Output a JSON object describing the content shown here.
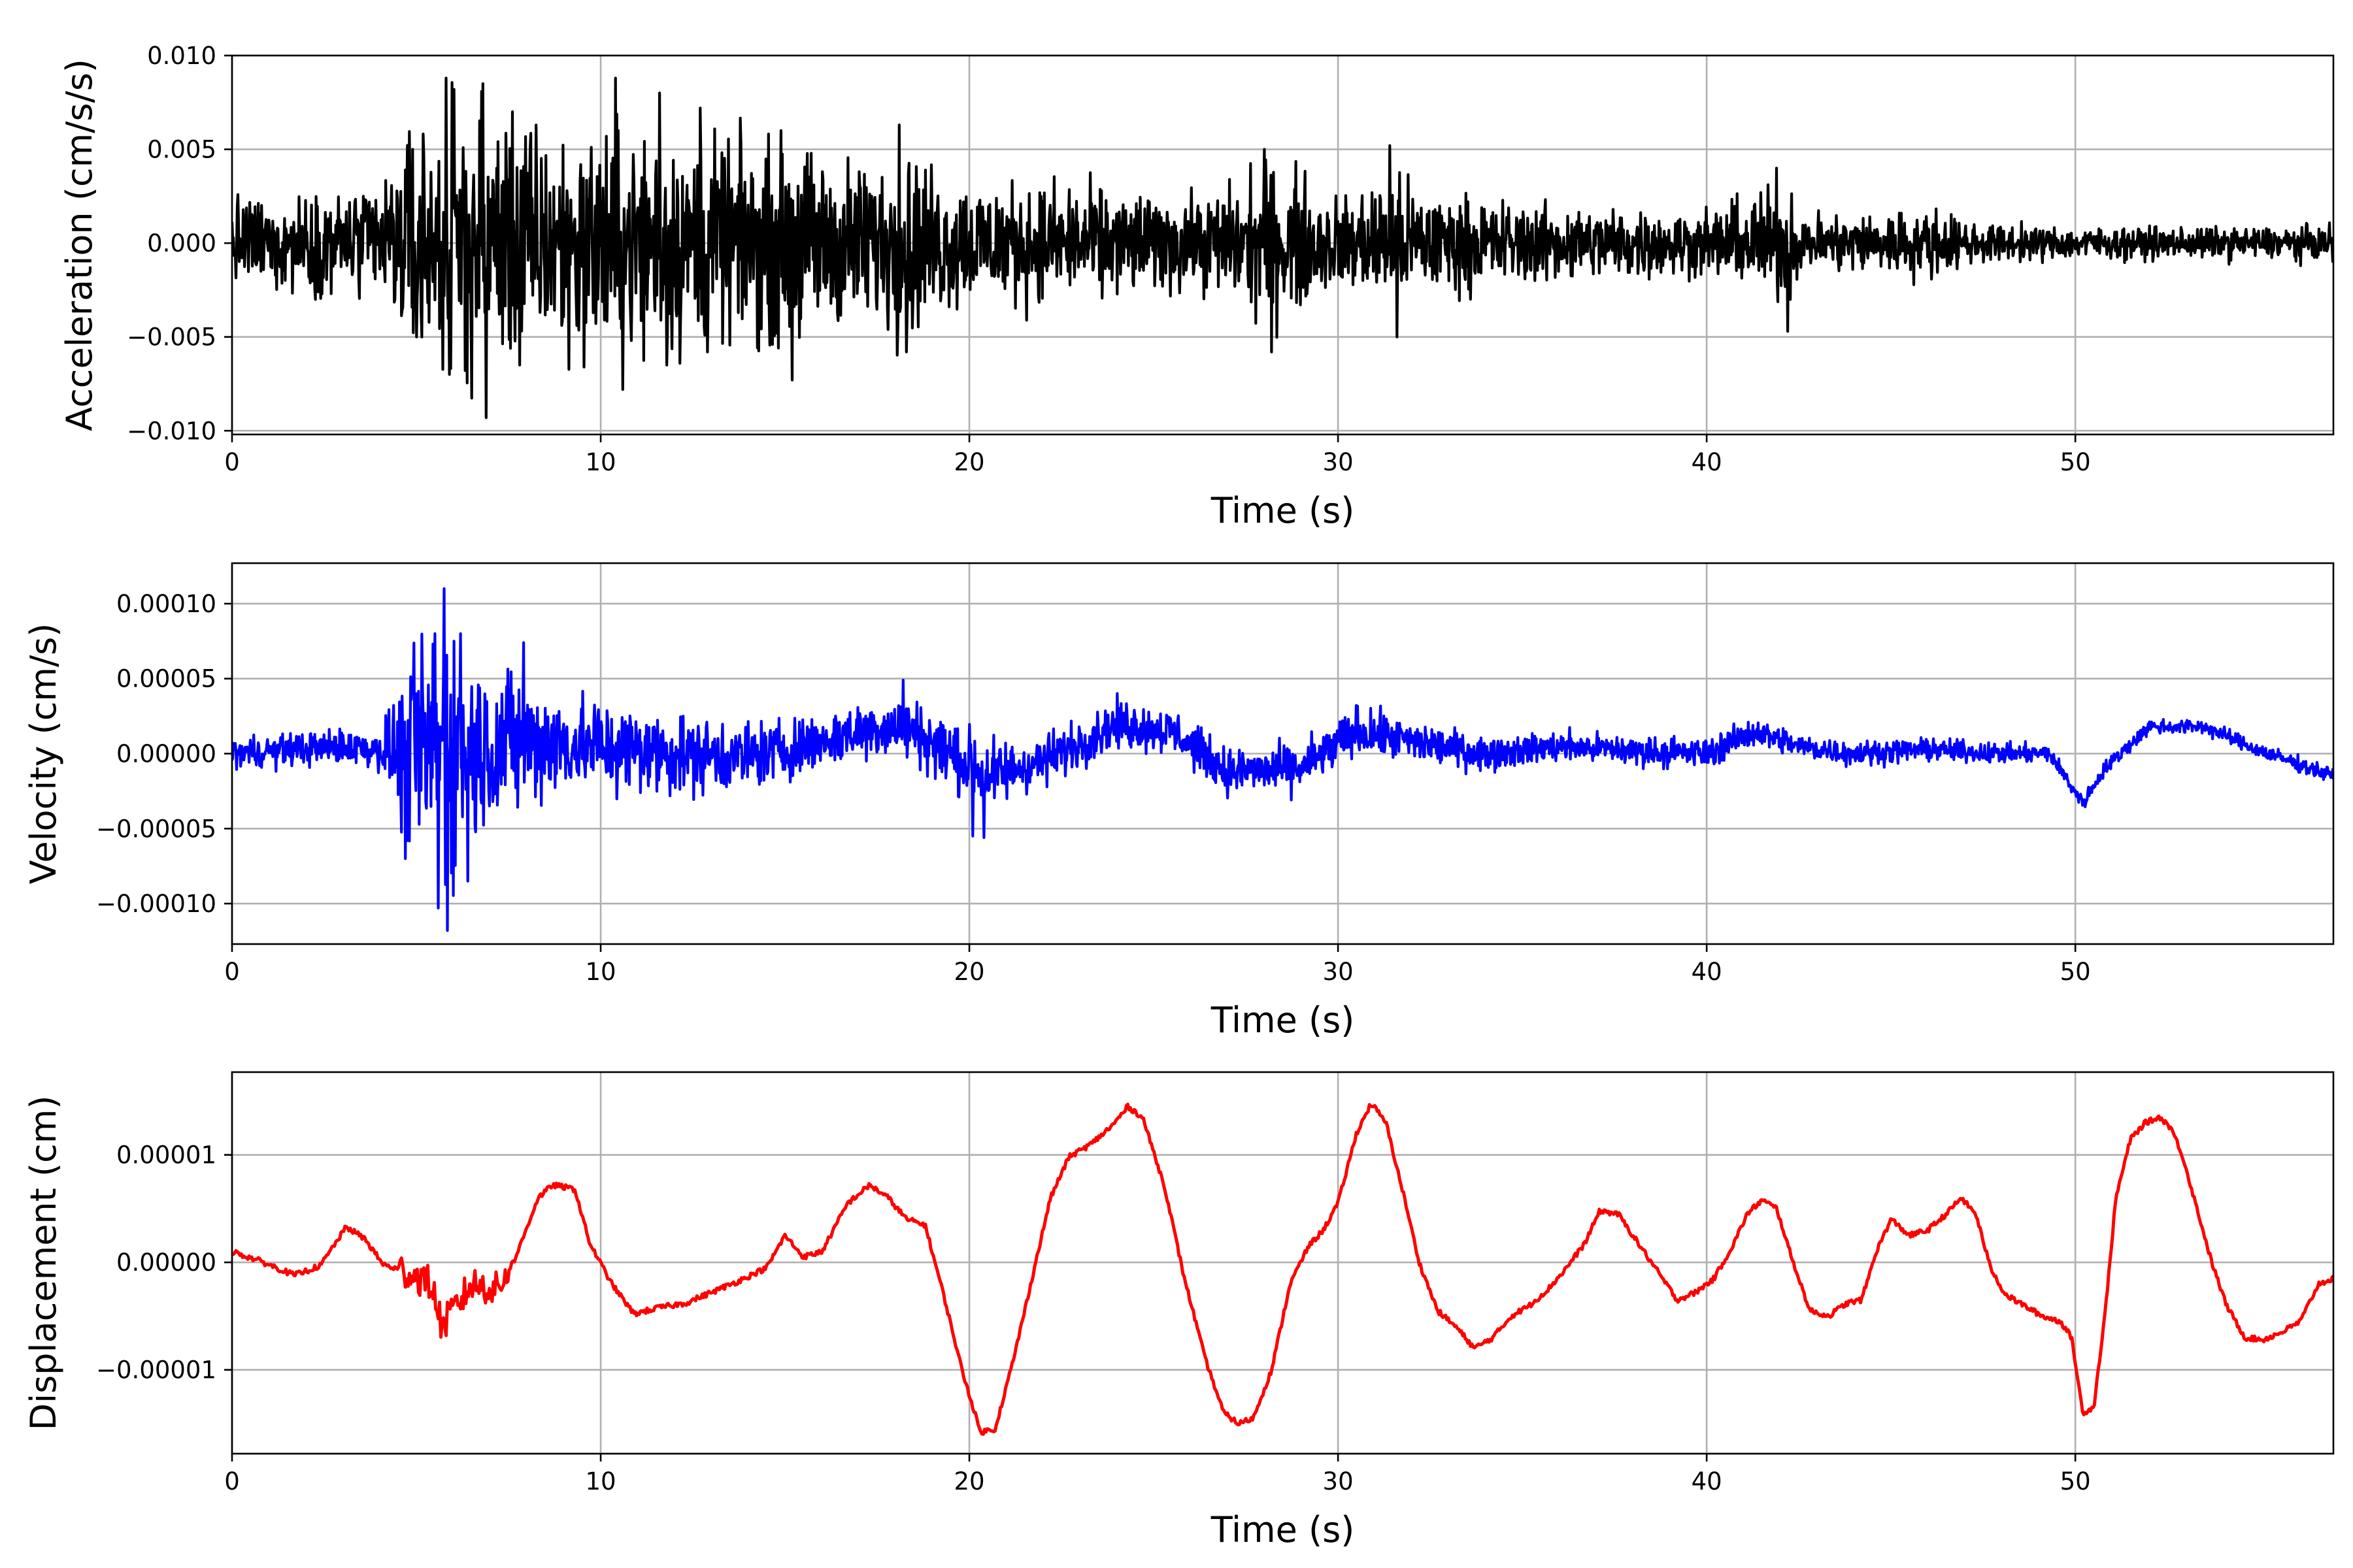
{
  "figure": {
    "layout": "three stacked panels sharing the time axis"
  },
  "chart_data": [
    {
      "type": "line",
      "panel": "acceleration",
      "title": "",
      "xlabel": "Time (s)",
      "ylabel": "Acceleration (cm/s/s)",
      "xlim": [
        0,
        57
      ],
      "ylim": [
        -0.0102,
        0.01
      ],
      "xticks": [
        0,
        10,
        20,
        30,
        40,
        50
      ],
      "xtick_labels": [
        "0",
        "10",
        "20",
        "30",
        "40",
        "50"
      ],
      "yticks": [
        0.01,
        0.005,
        0.0,
        -0.005,
        -0.01
      ],
      "ytick_labels": [
        "0.010",
        "0.005",
        "0.000",
        "−0.005",
        "−0.010"
      ],
      "grid": true,
      "legend": "none",
      "color": "#000000",
      "signal": "noise",
      "envelope": {
        "t": [
          0,
          2,
          4,
          4.8,
          5.5,
          6,
          6.8,
          7.5,
          9,
          10.5,
          12,
          13.5,
          15.2,
          17,
          18.2,
          19.5,
          21,
          23,
          25,
          26.5,
          28,
          28.8,
          30,
          31.5,
          32.5,
          35,
          38,
          40,
          41.5,
          42.3,
          42.5,
          44,
          46,
          47.5,
          50,
          53,
          55,
          57
        ],
        "amp": [
          0.0028,
          0.003,
          0.0038,
          0.0068,
          0.0078,
          0.0085,
          0.009,
          0.0075,
          0.0072,
          0.0072,
          0.007,
          0.006,
          0.0062,
          0.005,
          0.0058,
          0.0042,
          0.0038,
          0.0036,
          0.003,
          0.003,
          0.0048,
          0.0045,
          0.0028,
          0.0042,
          0.0032,
          0.0025,
          0.0022,
          0.002,
          0.0032,
          0.0035,
          0.0018,
          0.0019,
          0.0022,
          0.0012,
          0.001,
          0.001,
          0.001,
          0.0011
        ]
      },
      "peaks": [
        {
          "t": 4.9,
          "value": 0.005
        },
        {
          "t": 5.0,
          "value": -0.005
        },
        {
          "t": 5.8,
          "value": 0.0088
        },
        {
          "t": 5.9,
          "value": -0.007
        },
        {
          "t": 6.8,
          "value": 0.0085
        },
        {
          "t": 6.9,
          "value": -0.0093
        },
        {
          "t": 7.6,
          "value": 0.007
        },
        {
          "t": 7.8,
          "value": -0.0065
        },
        {
          "t": 10.4,
          "value": 0.0088
        },
        {
          "t": 10.6,
          "value": -0.0078
        },
        {
          "t": 11.6,
          "value": 0.008
        },
        {
          "t": 11.8,
          "value": -0.0065
        },
        {
          "t": 12.7,
          "value": 0.0072
        },
        {
          "t": 12.9,
          "value": -0.0058
        },
        {
          "t": 14.9,
          "value": 0.006
        },
        {
          "t": 15.2,
          "value": -0.0073
        },
        {
          "t": 18.1,
          "value": 0.0063
        },
        {
          "t": 18.3,
          "value": -0.0058
        },
        {
          "t": 28.0,
          "value": 0.005
        },
        {
          "t": 28.2,
          "value": -0.0058
        },
        {
          "t": 31.4,
          "value": 0.0052
        },
        {
          "t": 31.6,
          "value": -0.005
        },
        {
          "t": 41.9,
          "value": 0.004
        },
        {
          "t": 42.2,
          "value": -0.0047
        }
      ],
      "points": 3200
    },
    {
      "type": "line",
      "panel": "velocity",
      "title": "",
      "xlabel": "Time (s)",
      "ylabel": "Velocity (cm/s)",
      "xlim": [
        0,
        57
      ],
      "ylim": [
        -0.000127,
        0.000127
      ],
      "xticks": [
        0,
        10,
        20,
        30,
        40,
        50
      ],
      "xtick_labels": [
        "0",
        "10",
        "20",
        "30",
        "40",
        "50"
      ],
      "yticks": [
        0.0001,
        5e-05,
        0.0,
        -5e-05,
        -0.0001
      ],
      "ytick_labels": [
        "0.00010",
        "0.00005",
        "0.00000",
        "−0.00005",
        "−0.00010"
      ],
      "grid": true,
      "legend": "none",
      "color": "#0000ff",
      "signal": "noise-plus-baseline",
      "baseline": {
        "t": [
          0,
          3,
          5,
          8,
          10,
          12,
          14,
          16,
          17.5,
          18.5,
          19.5,
          20.5,
          22,
          24,
          25.5,
          27,
          29,
          30.5,
          32,
          34,
          36,
          38,
          40,
          41.3,
          42.5,
          44,
          46,
          48,
          49.3,
          50.2,
          50.8,
          52,
          53.5,
          55,
          57
        ],
        "value": [
          0.0,
          5e-06,
          0.0,
          8e-06,
          5e-06,
          0.0,
          -2e-06,
          8e-06,
          1.8e-05,
          1.5e-05,
          0.0,
          -1.5e-05,
          -5e-06,
          2e-05,
          1.5e-05,
          -1.2e-05,
          -1e-05,
          1.5e-05,
          8e-06,
          0.0,
          5e-06,
          2e-06,
          0.0,
          1.5e-05,
          5e-06,
          0.0,
          3e-06,
          0.0,
          0.0,
          -3.3e-05,
          -1e-05,
          1.8e-05,
          1.8e-05,
          2e-06,
          -1.5e-05
        ]
      },
      "envelope": {
        "t": [
          0,
          4,
          4.6,
          5.0,
          5.5,
          5.8,
          6.2,
          7,
          8,
          9,
          12,
          16,
          18.5,
          20,
          22,
          25,
          28,
          30,
          35,
          40,
          43,
          48,
          50,
          52,
          57
        ],
        "amp": [
          1.2e-05,
          1.5e-05,
          6e-05,
          8.5e-05,
          0.0001,
          0.000112,
          8e-05,
          6.5e-05,
          5e-05,
          4e-05,
          3.2e-05,
          2.2e-05,
          2.5e-05,
          3e-05,
          2e-05,
          1.8e-05,
          1.8e-05,
          2e-05,
          1.2e-05,
          1.2e-05,
          1e-05,
          8e-06,
          6e-06,
          6e-06,
          6e-06
        ]
      },
      "peaks": [
        {
          "t": 4.7,
          "value": -7e-05
        },
        {
          "t": 5.0,
          "value": 4e-05
        },
        {
          "t": 5.5,
          "value": 8e-05
        },
        {
          "t": 5.6,
          "value": -0.000103
        },
        {
          "t": 5.75,
          "value": 0.00011
        },
        {
          "t": 5.85,
          "value": -0.000118
        },
        {
          "t": 6.2,
          "value": 8e-05
        },
        {
          "t": 6.4,
          "value": -8.5e-05
        },
        {
          "t": 7.9,
          "value": 7.4e-05
        },
        {
          "t": 20.1,
          "value": -5.5e-05
        },
        {
          "t": 20.4,
          "value": -5.6e-05
        },
        {
          "t": 18.2,
          "value": 4.9e-05
        }
      ],
      "points": 3200
    },
    {
      "type": "line",
      "panel": "displacement",
      "title": "",
      "xlabel": "Time (s)",
      "ylabel": "Displacement (cm)",
      "xlim": [
        0,
        57
      ],
      "ylim": [
        -1.78e-05,
        1.77e-05
      ],
      "xticks": [
        0,
        10,
        20,
        30,
        40,
        50
      ],
      "xtick_labels": [
        "0",
        "10",
        "20",
        "30",
        "40",
        "50"
      ],
      "yticks": [
        1e-05,
        0.0,
        -1e-05
      ],
      "ytick_labels": [
        "0.00001",
        "0.00000",
        "−0.00001"
      ],
      "grid": true,
      "legend": "none",
      "color": "#ff0000",
      "signal": "smooth-plus-noise",
      "x": [
        0,
        0.7,
        1.7,
        2.4,
        3.1,
        3.6,
        4.1,
        4.8,
        5.4,
        5.7,
        6.1,
        6.5,
        7.2,
        7.7,
        8.3,
        8.7,
        9.3,
        9.7,
        10.3,
        10.9,
        11.6,
        12.3,
        13.0,
        13.7,
        14.5,
        15.0,
        15.5,
        16.0,
        16.7,
        17.3,
        17.8,
        18.3,
        18.8,
        19.3,
        19.8,
        20.3,
        20.7,
        21.2,
        21.7,
        22.2,
        22.7,
        23.3,
        23.9,
        24.3,
        24.7,
        25.3,
        25.8,
        26.4,
        26.9,
        27.3,
        27.7,
        28.2,
        28.7,
        29.2,
        29.6,
        30.0,
        30.5,
        30.9,
        31.3,
        31.8,
        32.2,
        32.7,
        33.2,
        33.7,
        34.2,
        34.7,
        35.2,
        35.7,
        36.2,
        36.7,
        37.1,
        37.6,
        38.1,
        38.7,
        39.2,
        39.7,
        40.2,
        40.7,
        41.1,
        41.5,
        41.9,
        42.3,
        42.8,
        43.3,
        43.8,
        44.2,
        44.6,
        45.0,
        45.5,
        46.0,
        46.5,
        46.9,
        47.3,
        47.7,
        48.1,
        48.6,
        49.1,
        49.6,
        49.9,
        50.2,
        50.5,
        50.8,
        51.1,
        51.5,
        51.9,
        52.3,
        52.6,
        52.9,
        53.3,
        53.7,
        54.1,
        54.6,
        55.1,
        55.6,
        56.1,
        56.6,
        57.0
      ],
      "y": [
        1e-06,
        2e-07,
        -1.2e-06,
        -3e-07,
        3.3e-06,
        2.2e-06,
        -2e-07,
        -1e-06,
        -2e-06,
        -6e-06,
        -4e-06,
        -2e-06,
        -2.5e-06,
        5e-07,
        6e-06,
        7.2e-06,
        6.8e-06,
        1.8e-06,
        -2e-06,
        -4.8e-06,
        -4.2e-06,
        -3.8e-06,
        -2.8e-06,
        -1.8e-06,
        -5e-07,
        2.5e-06,
        5e-07,
        1e-06,
        5.5e-06,
        7.2e-06,
        6e-06,
        4e-06,
        3.5e-06,
        -3e-06,
        -1e-05,
        -1.58e-05,
        -1.55e-05,
        -9e-06,
        -1.5e-06,
        6e-06,
        9.8e-06,
        1.1e-05,
        1.28e-05,
        1.45e-05,
        1.35e-05,
        7e-06,
        -1e-06,
        -9e-06,
        -1.4e-05,
        -1.5e-05,
        -1.45e-05,
        -1e-05,
        -2e-06,
        1.5e-06,
        3e-06,
        5.5e-06,
        1.2e-05,
        1.48e-05,
        1.3e-05,
        6e-06,
        0.0,
        -4.5e-06,
        -6e-06,
        -8e-06,
        -7e-06,
        -5e-06,
        -4e-06,
        -2.5e-06,
        -5e-07,
        1.8e-06,
        4.8e-06,
        4.5e-06,
        2e-06,
        -1e-06,
        -3.5e-06,
        -2.8e-06,
        -1.5e-06,
        1.5e-06,
        4.5e-06,
        5.8e-06,
        5e-06,
        5e-07,
        -4.5e-06,
        -5e-06,
        -3.8e-06,
        -3.5e-06,
        1e-06,
        4e-06,
        2.5e-06,
        3e-06,
        4.5e-06,
        6e-06,
        4.5e-06,
        -5e-07,
        -3e-06,
        -4e-06,
        -5e-06,
        -5.5e-06,
        -7e-06,
        -1.4e-05,
        -1.35e-05,
        -5e-06,
        6e-06,
        1.15e-05,
        1.3e-05,
        1.35e-05,
        1.25e-05,
        1e-05,
        5e-06,
        0.0,
        -4e-06,
        -7e-06,
        -7.2e-06,
        -6.5e-06,
        -5.5e-06,
        -2e-06,
        -1.5e-06
      ]
    }
  ]
}
